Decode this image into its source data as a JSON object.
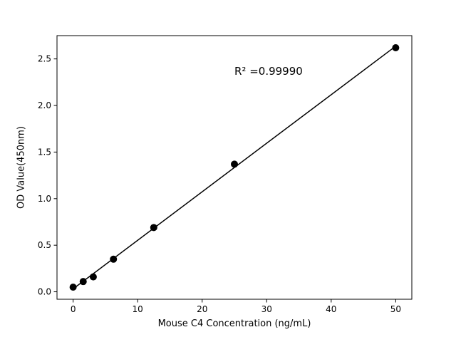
{
  "chart_data": {
    "type": "scatter",
    "title": "",
    "xlabel": "Mouse C4 Concentration (ng/mL)",
    "ylabel": "OD Value(450nm)",
    "annotation": "R² =0.99990",
    "x": [
      0,
      1.56,
      3.125,
      6.25,
      12.5,
      25,
      50
    ],
    "y": [
      0.05,
      0.11,
      0.16,
      0.35,
      0.69,
      1.37,
      2.62
    ],
    "fit": "linear",
    "xticks": [
      0,
      10,
      20,
      30,
      40,
      50
    ],
    "xtick_labels": [
      "0",
      "10",
      "20",
      "30",
      "40",
      "50"
    ],
    "yticks": [
      0.0,
      0.5,
      1.0,
      1.5,
      2.0,
      2.5
    ],
    "ytick_labels": [
      "0.0",
      "0.5",
      "1.0",
      "1.5",
      "2.0",
      "2.5"
    ],
    "xlim": [
      -2.5,
      52.5
    ],
    "ylim": [
      -0.08,
      2.75
    ],
    "legend": false,
    "grid": false,
    "marker_color": "#000000",
    "line_color": "#000000",
    "background_color": "#ffffff",
    "marker_radius": 5,
    "line_width": 1.5
  }
}
